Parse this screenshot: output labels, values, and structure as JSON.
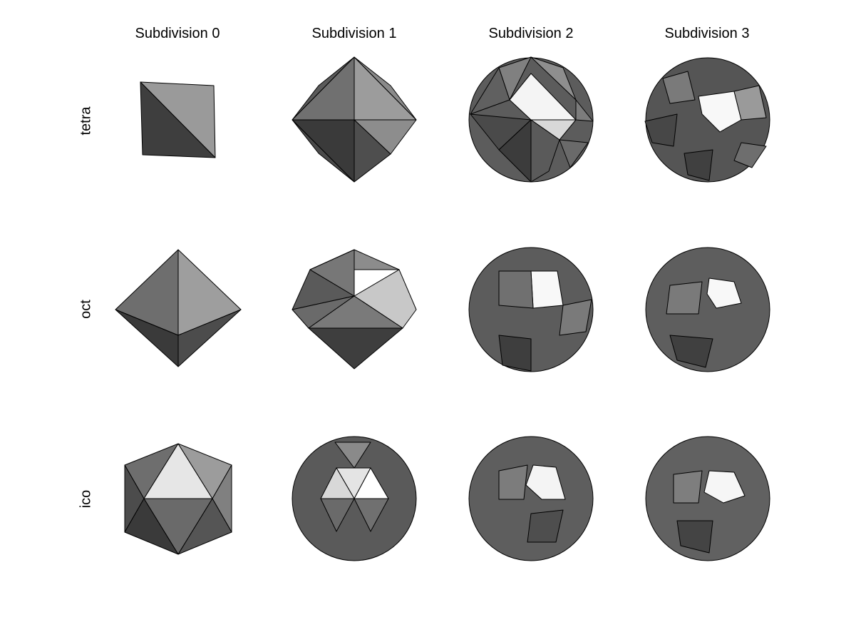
{
  "columns": [
    "Subdivision 0",
    "Subdivision 1",
    "Subdivision 2",
    "Subdivision 3"
  ],
  "rows": [
    "tetra",
    "oct",
    "ico"
  ]
}
